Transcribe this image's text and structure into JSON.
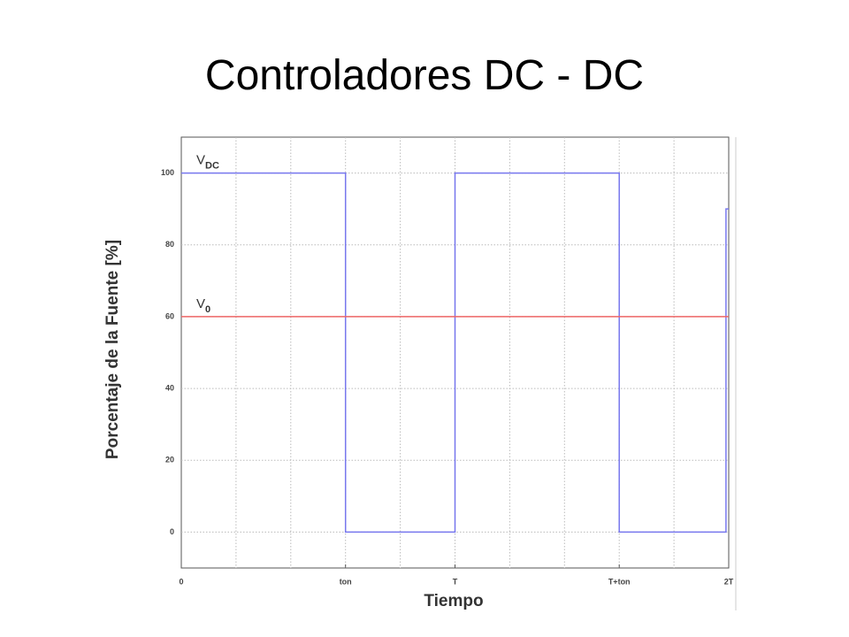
{
  "title": "Controladores DC - DC",
  "chart_data": {
    "type": "line",
    "xlabel": "Tiempo",
    "ylabel": "Porcentaje de la Fuente [%]",
    "xlim": [
      0,
      2
    ],
    "ylim": [
      -10,
      110
    ],
    "xticks": [
      0,
      {
        "value": 0.6,
        "label": "ton"
      },
      {
        "value": 1,
        "label": "T"
      },
      {
        "value": 1.6,
        "label": "T+ton"
      },
      {
        "value": 2,
        "label": "2T"
      }
    ],
    "xgrid": [
      0.2,
      0.4,
      0.6,
      0.8,
      1,
      1.2,
      1.4,
      1.6,
      1.8
    ],
    "yticks": [
      0,
      20,
      40,
      60,
      80,
      100
    ],
    "grid": true,
    "series": [
      {
        "color": "#7777ee",
        "x": [
          0,
          0.6,
          0.6,
          1,
          1,
          1.6,
          1.6,
          1.99,
          1.99,
          2
        ],
        "values": [
          100,
          100,
          0,
          0,
          100,
          100,
          0,
          0,
          90,
          90
        ]
      },
      {
        "color": "#ee6666",
        "x": [
          0,
          2
        ],
        "values": [
          60,
          60
        ]
      }
    ],
    "annotations": [
      {
        "text": "V",
        "subscript": "DC",
        "y": 100
      },
      {
        "text": "V",
        "subscript": "0",
        "y": 60
      }
    ]
  }
}
